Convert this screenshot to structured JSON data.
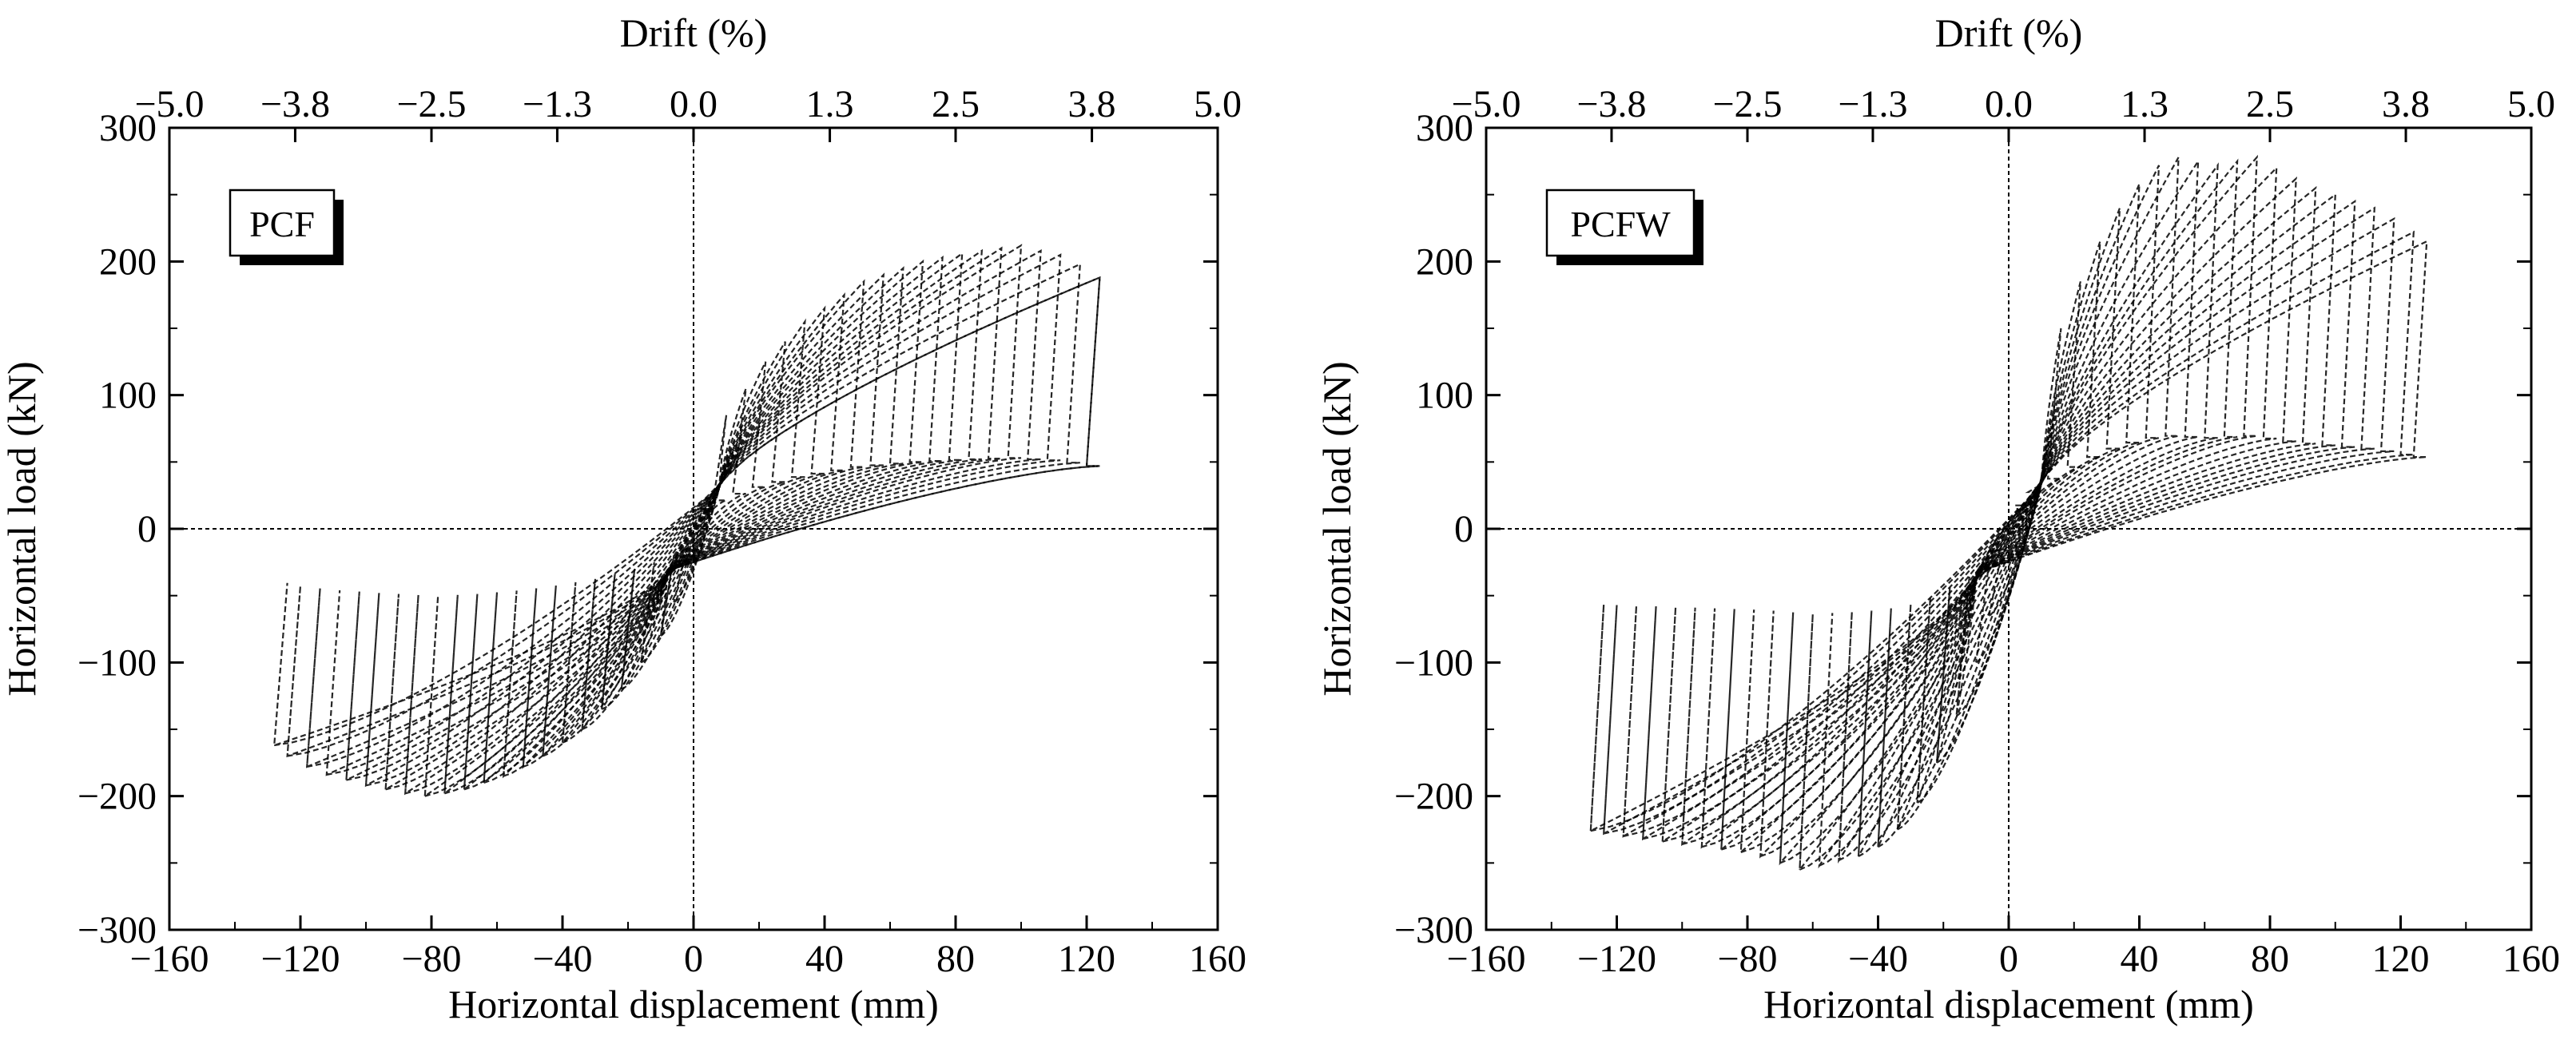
{
  "chart_data": [
    {
      "type": "line",
      "panel_label": "PCF",
      "xlabel": "Horizontal displacement (mm)",
      "ylabel": "Horizontal load (kN)",
      "x2label": "Drift (%)",
      "xlim": [
        -160,
        160
      ],
      "ylim": [
        -300,
        300
      ],
      "xticks": [
        -160,
        -120,
        -80,
        -40,
        0,
        40,
        80,
        120,
        160
      ],
      "xtick_labels": [
        "−160",
        "−120",
        "−80",
        "−40",
        "0",
        "40",
        "80",
        "120",
        "160"
      ],
      "yticks": [
        -300,
        -200,
        -100,
        0,
        100,
        200,
        300
      ],
      "ytick_labels": [
        "−300",
        "−200",
        "−100",
        "0",
        "100",
        "200",
        "300"
      ],
      "x2ticks": [
        -5.0,
        -3.8,
        -2.5,
        -1.3,
        0.0,
        1.3,
        2.5,
        3.8,
        5.0
      ],
      "x2tick_labels": [
        "−5.0",
        "−3.8",
        "−2.5",
        "−1.3",
        "0.0",
        "1.3",
        "2.5",
        "3.8",
        "5.0"
      ],
      "series": [
        {
          "name": "hysteresis loops",
          "style": "dashed",
          "peak_displacement": [
            6,
            10,
            16,
            22,
            28,
            34,
            40,
            46,
            52,
            58,
            64,
            70,
            76,
            82,
            88,
            94,
            100,
            106,
            112,
            118,
            124
          ],
          "positive_peak_load": [
            60,
            85,
            105,
            125,
            140,
            155,
            165,
            175,
            185,
            190,
            195,
            200,
            203,
            206,
            208,
            210,
            212,
            208,
            205,
            198,
            188
          ],
          "negative_peak_displacement": [
            -6,
            -10,
            -16,
            -22,
            -28,
            -34,
            -40,
            -46,
            -52,
            -58,
            -64,
            -70,
            -76,
            -82,
            -88,
            -94,
            -100,
            -106,
            -112,
            -118,
            -124,
            -128
          ],
          "negative_peak_load": [
            -55,
            -80,
            -100,
            -120,
            -135,
            -150,
            -160,
            -170,
            -178,
            -185,
            -190,
            -195,
            -198,
            -200,
            -198,
            -195,
            -192,
            -188,
            -184,
            -178,
            -170,
            -162
          ],
          "zero_load_intercept_mm": 8,
          "reload_load_kN": 90
        }
      ]
    },
    {
      "type": "line",
      "panel_label": "PCFW",
      "xlabel": "Horizontal displacement (mm)",
      "ylabel": "Horizontal load (kN)",
      "x2label": "Drift (%)",
      "xlim": [
        -160,
        160
      ],
      "ylim": [
        -300,
        300
      ],
      "xticks": [
        -160,
        -120,
        -80,
        -40,
        0,
        40,
        80,
        120,
        160
      ],
      "xtick_labels": [
        "−160",
        "−120",
        "−80",
        "−40",
        "0",
        "40",
        "80",
        "120",
        "160"
      ],
      "yticks": [
        -300,
        -200,
        -100,
        0,
        100,
        200,
        300
      ],
      "ytick_labels": [
        "−300",
        "−200",
        "−100",
        "0",
        "100",
        "200",
        "300"
      ],
      "x2ticks": [
        -5.0,
        -3.8,
        -2.5,
        -1.3,
        0.0,
        1.3,
        2.5,
        3.8,
        5.0
      ],
      "x2tick_labels": [
        "−5.0",
        "−3.8",
        "−2.5",
        "−1.3",
        "0.0",
        "1.3",
        "2.5",
        "3.8",
        "5.0"
      ],
      "series": [
        {
          "name": "hysteresis loops",
          "style": "dashed",
          "peak_displacement": [
            6,
            10,
            16,
            22,
            28,
            34,
            40,
            46,
            52,
            58,
            64,
            70,
            76,
            82,
            88,
            94,
            100,
            106,
            112,
            118,
            124,
            128
          ],
          "positive_peak_load": [
            70,
            110,
            150,
            185,
            215,
            240,
            258,
            272,
            278,
            275,
            272,
            275,
            278,
            270,
            262,
            255,
            250,
            245,
            240,
            232,
            222,
            215
          ],
          "negative_peak_displacement": [
            -6,
            -10,
            -16,
            -22,
            -28,
            -34,
            -40,
            -46,
            -52,
            -58,
            -64,
            -70,
            -76,
            -82,
            -88,
            -94,
            -100,
            -106,
            -112,
            -118,
            -124,
            -128
          ],
          "negative_peak_load": [
            -65,
            -100,
            -140,
            -175,
            -205,
            -225,
            -238,
            -245,
            -248,
            -252,
            -255,
            -250,
            -245,
            -242,
            -240,
            -238,
            -236,
            -234,
            -232,
            -230,
            -228,
            -226
          ],
          "zero_load_intercept_mm": 10,
          "reload_load_kN": 95
        }
      ]
    }
  ]
}
